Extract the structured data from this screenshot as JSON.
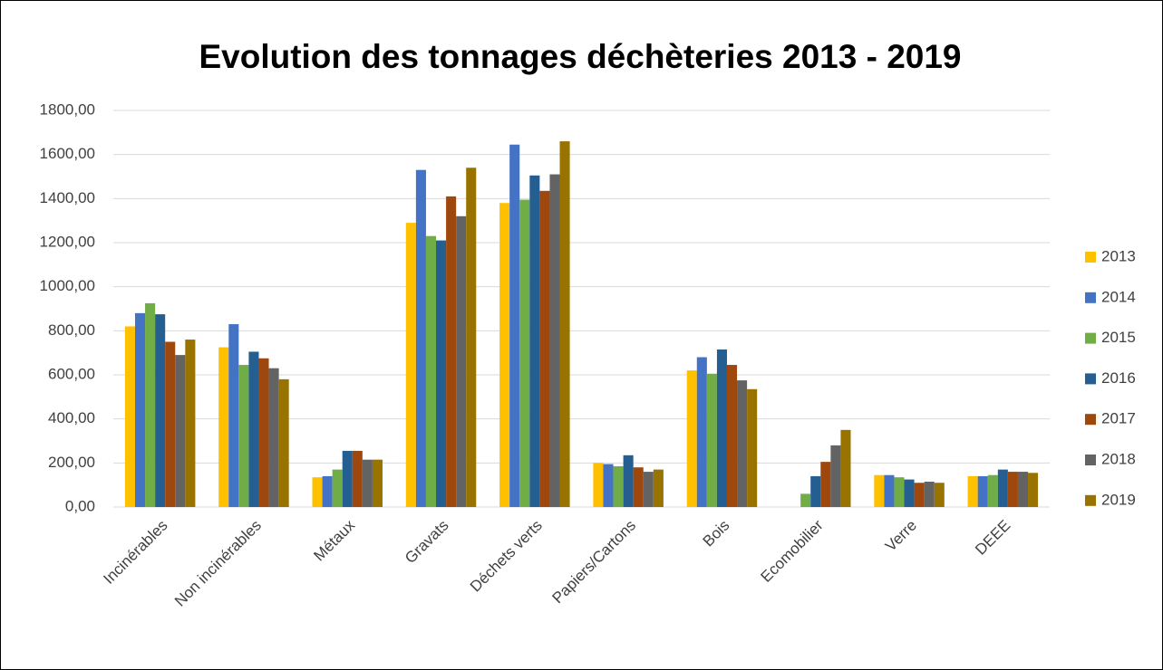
{
  "chart_data": {
    "type": "bar",
    "title": "Evolution des tonnages déchèteries 2013 - 2019",
    "categories": [
      "Incinérables",
      "Non incinérables",
      "Métaux",
      "Gravats",
      "Déchets verts",
      "Papiers/Cartons",
      "Bois",
      "Ecomobilier",
      "Verre",
      "DEEE"
    ],
    "series": [
      {
        "name": "2013",
        "color": "#ffc000",
        "values": [
          820,
          725,
          135,
          1290,
          1380,
          200,
          620,
          null,
          145,
          140
        ]
      },
      {
        "name": "2014",
        "color": "#4472c4",
        "values": [
          880,
          830,
          140,
          1530,
          1645,
          195,
          680,
          null,
          145,
          140
        ]
      },
      {
        "name": "2015",
        "color": "#70ad47",
        "values": [
          925,
          645,
          170,
          1230,
          1395,
          185,
          605,
          60,
          135,
          145
        ]
      },
      {
        "name": "2016",
        "color": "#255e91",
        "values": [
          875,
          705,
          255,
          1210,
          1505,
          235,
          715,
          140,
          125,
          170
        ]
      },
      {
        "name": "2017",
        "color": "#9e480e",
        "values": [
          750,
          675,
          255,
          1410,
          1435,
          180,
          645,
          205,
          110,
          160
        ]
      },
      {
        "name": "2018",
        "color": "#636363",
        "values": [
          690,
          630,
          215,
          1320,
          1510,
          160,
          575,
          280,
          115,
          160
        ]
      },
      {
        "name": "2019",
        "color": "#997300",
        "values": [
          760,
          580,
          215,
          1540,
          1660,
          170,
          535,
          350,
          110,
          155
        ]
      }
    ],
    "ylim": [
      0,
      1800
    ],
    "yticks": [
      {
        "value": 0,
        "label": "0,00"
      },
      {
        "value": 200,
        "label": "200,00"
      },
      {
        "value": 400,
        "label": "400,00"
      },
      {
        "value": 600,
        "label": "600,00"
      },
      {
        "value": 800,
        "label": "800,00"
      },
      {
        "value": 1000,
        "label": "1000,00"
      },
      {
        "value": 1200,
        "label": "1200,00"
      },
      {
        "value": 1400,
        "label": "1400,00"
      },
      {
        "value": 1600,
        "label": "1600,00"
      },
      {
        "value": 1800,
        "label": "1800,00"
      }
    ],
    "grid": true,
    "legend": "right"
  }
}
